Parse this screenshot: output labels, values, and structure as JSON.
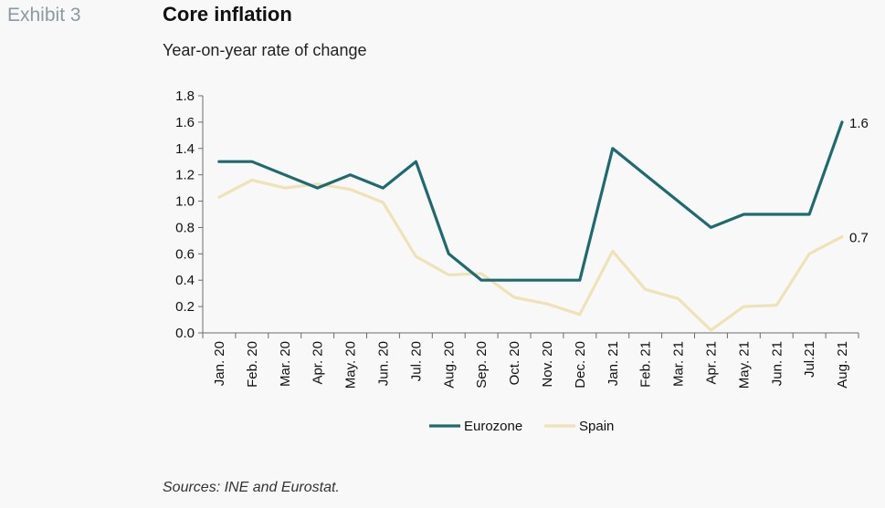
{
  "header": {
    "exhibit_label": "Exhibit 3",
    "title": "Core inflation",
    "subtitle": "Year-on-year rate of change"
  },
  "footer": {
    "source": "Sources: INE and Eurostat."
  },
  "colors": {
    "eurozone": "#1e6b6f",
    "spain": "#efe2b8",
    "axis": "#6b6b6b"
  },
  "chart_data": {
    "type": "line",
    "title": "Core inflation",
    "subtitle": "Year-on-year rate of change",
    "categories": [
      "Jan. 20",
      "Feb. 20",
      "Mar. 20",
      "Apr. 20",
      "May. 20",
      "Jun. 20",
      "Jul. 20",
      "Aug. 20",
      "Sep. 20",
      "Oct. 20",
      "Nov. 20",
      "Dec. 20",
      "Jan. 21",
      "Feb. 21",
      "Mar. 21",
      "Apr. 21",
      "May. 21",
      "Jun. 21",
      "Jul.21",
      "Aug. 21"
    ],
    "ylim": [
      0,
      1.8
    ],
    "yticks": [
      "0.0",
      "0.2",
      "0.4",
      "0.6",
      "0.8",
      "1.0",
      "1.2",
      "1.4",
      "1.6",
      "1.8"
    ],
    "grid": false,
    "legend_position": "bottom",
    "series": [
      {
        "name": "Eurozone",
        "values": [
          1.3,
          1.3,
          1.2,
          1.1,
          1.2,
          1.1,
          1.3,
          0.6,
          0.4,
          0.4,
          0.4,
          0.4,
          1.4,
          1.2,
          1.0,
          0.8,
          0.9,
          0.9,
          0.9,
          1.6
        ],
        "end_label": "1.6"
      },
      {
        "name": "Spain",
        "values": [
          1.03,
          1.16,
          1.1,
          1.13,
          1.09,
          0.99,
          0.58,
          0.44,
          0.45,
          0.27,
          0.22,
          0.14,
          0.62,
          0.33,
          0.26,
          0.02,
          0.2,
          0.21,
          0.6,
          0.73
        ],
        "end_label": "0.7"
      }
    ]
  }
}
